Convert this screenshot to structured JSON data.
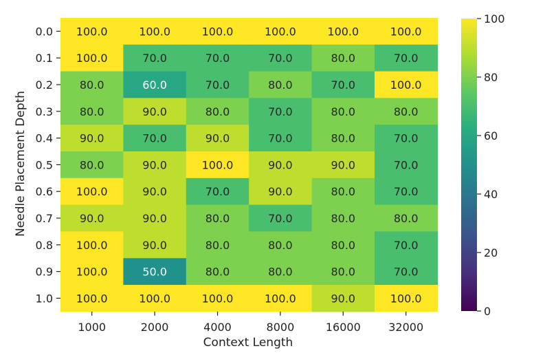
{
  "chart_data": {
    "type": "heatmap",
    "title": "",
    "xlabel": "Context Length",
    "ylabel": "Needle Placement Depth",
    "x_categories": [
      "1000",
      "2000",
      "4000",
      "8000",
      "16000",
      "32000"
    ],
    "y_categories": [
      "0.0",
      "0.1",
      "0.2",
      "0.3",
      "0.4",
      "0.5",
      "0.6",
      "0.7",
      "0.8",
      "0.9",
      "1.0"
    ],
    "values": [
      [
        100,
        100,
        100,
        100,
        100,
        100
      ],
      [
        100,
        70,
        70,
        70,
        80,
        70
      ],
      [
        80,
        60,
        70,
        80,
        70,
        100
      ],
      [
        80,
        90,
        80,
        70,
        80,
        80
      ],
      [
        90,
        70,
        90,
        70,
        80,
        70
      ],
      [
        80,
        90,
        100,
        90,
        90,
        70
      ],
      [
        100,
        90,
        70,
        90,
        80,
        70
      ],
      [
        90,
        90,
        80,
        70,
        80,
        80
      ],
      [
        100,
        90,
        80,
        80,
        80,
        70
      ],
      [
        100,
        50,
        80,
        80,
        80,
        70
      ],
      [
        100,
        100,
        100,
        100,
        90,
        100
      ]
    ],
    "value_labels": [
      [
        "100.0",
        "100.0",
        "100.0",
        "100.0",
        "100.0",
        "100.0"
      ],
      [
        "100.0",
        "70.0",
        "70.0",
        "70.0",
        "80.0",
        "70.0"
      ],
      [
        "80.0",
        "60.0",
        "70.0",
        "80.0",
        "70.0",
        "100.0"
      ],
      [
        "80.0",
        "90.0",
        "80.0",
        "70.0",
        "80.0",
        "80.0"
      ],
      [
        "90.0",
        "70.0",
        "90.0",
        "70.0",
        "80.0",
        "70.0"
      ],
      [
        "80.0",
        "90.0",
        "100.0",
        "90.0",
        "90.0",
        "70.0"
      ],
      [
        "100.0",
        "90.0",
        "70.0",
        "90.0",
        "80.0",
        "70.0"
      ],
      [
        "90.0",
        "90.0",
        "80.0",
        "70.0",
        "80.0",
        "80.0"
      ],
      [
        "100.0",
        "90.0",
        "80.0",
        "80.0",
        "80.0",
        "70.0"
      ],
      [
        "100.0",
        "50.0",
        "80.0",
        "80.0",
        "80.0",
        "70.0"
      ],
      [
        "100.0",
        "100.0",
        "100.0",
        "100.0",
        "90.0",
        "100.0"
      ]
    ],
    "colorbar": {
      "min": 0,
      "max": 100,
      "ticks": [
        0,
        20,
        40,
        60,
        80,
        100
      ],
      "tick_labels": [
        "0",
        "20",
        "40",
        "60",
        "80",
        "100"
      ],
      "colormap": "viridis"
    },
    "grid": false,
    "legend": "colorbar-right"
  }
}
